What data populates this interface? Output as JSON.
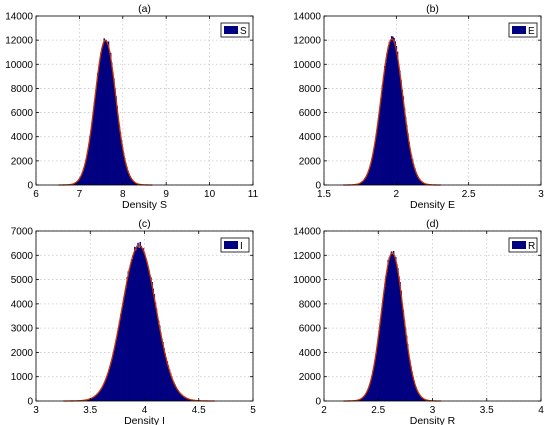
{
  "colors": {
    "bar_fill": "#000080",
    "curve": "#cc3300",
    "grid": "#c8c8c8",
    "axes": "#000000"
  },
  "chart_data": [
    {
      "type": "bar",
      "title": "(a)",
      "xlabel": "Density S",
      "ylabel": "",
      "legend": "S",
      "legend_position": "top-right",
      "grid": true,
      "xlim": [
        6,
        11
      ],
      "ylim": [
        0,
        14000
      ],
      "xticks": [
        "6",
        "7",
        "8",
        "9",
        "10",
        "11"
      ],
      "yticks": [
        "0",
        "2000",
        "4000",
        "6000",
        "8000",
        "10000",
        "12000",
        "14000"
      ],
      "histogram": {
        "center": 7.6,
        "std": 0.24,
        "peak": 12100,
        "bin_width": 0.025
      },
      "fitted_curve": {
        "center": 7.6,
        "std": 0.24,
        "peak": 12000
      }
    },
    {
      "type": "bar",
      "title": "(b)",
      "xlabel": "Density E",
      "ylabel": "",
      "legend": "E",
      "legend_position": "top-right",
      "grid": true,
      "xlim": [
        1.5,
        3
      ],
      "ylim": [
        0,
        14000
      ],
      "xticks": [
        "1.5",
        "2",
        "2.5",
        "3"
      ],
      "yticks": [
        "0",
        "2000",
        "4000",
        "6000",
        "8000",
        "10000",
        "12000",
        "14000"
      ],
      "histogram": {
        "center": 1.97,
        "std": 0.075,
        "peak": 12200,
        "bin_width": 0.008
      },
      "fitted_curve": {
        "center": 1.97,
        "std": 0.075,
        "peak": 12100
      }
    },
    {
      "type": "bar",
      "title": "(c)",
      "xlabel": "Density I",
      "ylabel": "",
      "legend": "I",
      "legend_position": "top-right",
      "grid": true,
      "xlim": [
        3,
        5
      ],
      "ylim": [
        0,
        7000
      ],
      "xticks": [
        "3",
        "3.5",
        "4",
        "4.5",
        "5"
      ],
      "yticks": [
        "0",
        "1000",
        "2000",
        "3000",
        "4000",
        "5000",
        "6000",
        "7000"
      ],
      "histogram": {
        "center": 3.95,
        "std": 0.155,
        "peak": 6450,
        "bin_width": 0.01
      },
      "fitted_curve": {
        "center": 3.95,
        "std": 0.155,
        "peak": 6400
      }
    },
    {
      "type": "bar",
      "title": "(d)",
      "xlabel": "Density R",
      "ylabel": "",
      "legend": "R",
      "legend_position": "top-right",
      "grid": true,
      "xlim": [
        2,
        4
      ],
      "ylim": [
        0,
        14000
      ],
      "xticks": [
        "2",
        "2.5",
        "3",
        "3.5",
        "4"
      ],
      "yticks": [
        "0",
        "2000",
        "4000",
        "6000",
        "8000",
        "10000",
        "12000",
        "14000"
      ],
      "histogram": {
        "center": 2.63,
        "std": 0.1,
        "peak": 12300,
        "bin_width": 0.01
      },
      "fitted_curve": {
        "center": 2.63,
        "std": 0.1,
        "peak": 12200
      }
    }
  ]
}
